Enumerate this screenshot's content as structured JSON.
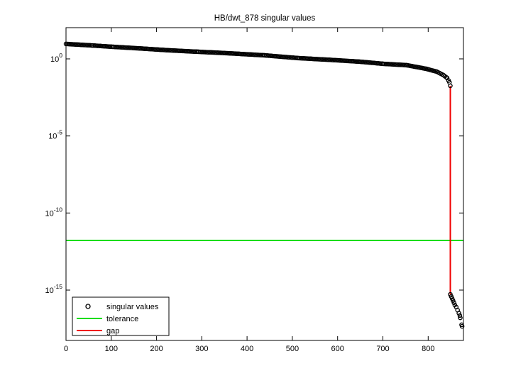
{
  "window": {
    "background": "#ffffff"
  },
  "chart_data": {
    "type": "scatter",
    "title": "HB/dwt_878 singular values",
    "xlabel": "",
    "ylabel": "",
    "grid": false,
    "xlim": [
      0,
      878
    ],
    "ylim_log10": [
      2.03,
      -18.3
    ],
    "x_ticks": [
      0,
      100,
      200,
      300,
      400,
      500,
      600,
      700,
      800
    ],
    "y_ticks": [
      {
        "base": "10",
        "exp": "0"
      },
      {
        "base": "10",
        "exp": "-5"
      },
      {
        "base": "10",
        "exp": "-10"
      },
      {
        "base": "10",
        "exp": "-15"
      }
    ],
    "legend": {
      "position": "south-west",
      "items": [
        {
          "label": "singular values",
          "marker": "circle",
          "color": "#000000"
        },
        {
          "label": "tolerance",
          "marker": "line",
          "color": "#00DD00"
        },
        {
          "label": "gap",
          "marker": "line",
          "color": "#F00000"
        }
      ]
    },
    "series": {
      "singular_values": {
        "name": "singular values",
        "marker": "circle",
        "color": "#000000",
        "max_value": 9.3,
        "profile_log10": [
          [
            0,
            0.97
          ],
          [
            58,
            0.87
          ],
          [
            105,
            0.78
          ],
          [
            168,
            0.67
          ],
          [
            231,
            0.55
          ],
          [
            293,
            0.46
          ],
          [
            356,
            0.37
          ],
          [
            439,
            0.23
          ],
          [
            513,
            0.05
          ],
          [
            576,
            -0.05
          ],
          [
            648,
            -0.18
          ],
          [
            701,
            -0.32
          ],
          [
            753,
            -0.41
          ],
          [
            795,
            -0.64
          ],
          [
            819,
            -0.83
          ],
          [
            834,
            -1.06
          ],
          [
            842,
            -1.24
          ],
          [
            847,
            -1.52
          ],
          [
            849,
            -1.75
          ]
        ],
        "tail_log10": [
          [
            849,
            -15.28
          ],
          [
            851,
            -15.42
          ],
          [
            853,
            -15.55
          ],
          [
            855,
            -15.68
          ],
          [
            857,
            -15.82
          ],
          [
            859,
            -15.97
          ],
          [
            862,
            -16.1
          ],
          [
            865,
            -16.3
          ],
          [
            868,
            -16.5
          ],
          [
            870,
            -16.65
          ],
          [
            871,
            -16.8
          ],
          [
            874,
            -17.25
          ],
          [
            875,
            -17.35
          ]
        ]
      },
      "tolerance": {
        "name": "tolerance",
        "color": "#00DD00",
        "value": 1.7e-12,
        "value_log10": -11.78
      },
      "gap": {
        "name": "gap",
        "color": "#F00000",
        "index": 849,
        "from_value": 0.018,
        "to_value": 5.2e-16,
        "from_log10": -1.75,
        "to_log10": -15.28
      }
    }
  }
}
